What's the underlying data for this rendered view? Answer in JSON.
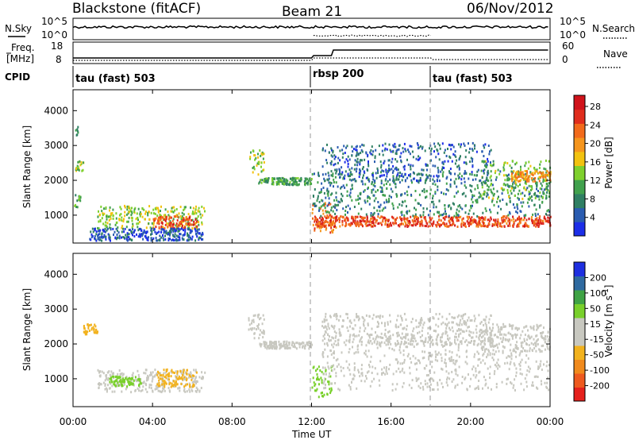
{
  "header": {
    "station": "Blackstone (fitACF)",
    "beam": "Beam 21",
    "date": "06/Nov/2012"
  },
  "params_panel": {
    "nsky_label": "N.Sky",
    "nsearch_label": "N.Search",
    "freq_label_line1": "Freq.",
    "freq_label_line2": "[MHz]",
    "nave_label": "Nave",
    "cpid_label": "CPID",
    "noise_left_ticks": [
      "10^5",
      "10^0"
    ],
    "noise_right_ticks": [
      "10^5",
      "10^0"
    ],
    "freq_ticks": [
      "18",
      "8"
    ],
    "nave_ticks": [
      "60",
      "0"
    ],
    "cpid_segments": [
      {
        "label": "tau (fast) 503",
        "start_hour": 0,
        "end_hour": 12
      },
      {
        "label": "rbsp 200",
        "start_hour": 12,
        "end_hour": 18
      },
      {
        "label": "tau (fast) 503",
        "start_hour": 18,
        "end_hour": 24
      }
    ]
  },
  "chart_data": [
    {
      "type": "heatmap",
      "name": "power",
      "ylabel": "Slant Range [km]",
      "xlim": [
        0,
        24
      ],
      "ylim": [
        200,
        4600
      ],
      "yticks": [
        "1000",
        "2000",
        "3000",
        "4000"
      ],
      "colorbar": {
        "label": "Power [dB]",
        "ticks": [
          "4",
          "8",
          "12",
          "16",
          "20",
          "24",
          "28"
        ],
        "range": [
          0,
          30
        ],
        "colors": [
          "#1c2ee8",
          "#2a5cb0",
          "#2f7f63",
          "#41a14d",
          "#7fd02d",
          "#f2c20f",
          "#f5951d",
          "#f26a1b",
          "#e02d1d",
          "#d0131b"
        ]
      },
      "regions": [
        {
          "t0": 0.05,
          "t1": 0.35,
          "r0": 1250,
          "r1": 1700,
          "value": 10
        },
        {
          "t0": 0.1,
          "t1": 0.5,
          "r0": 2300,
          "r1": 2600,
          "value": 14
        },
        {
          "t0": 0.1,
          "t1": 0.25,
          "r0": 3300,
          "r1": 3600,
          "value": 8
        },
        {
          "t0": 1.2,
          "t1": 6.6,
          "r0": 650,
          "r1": 1300,
          "value": 14
        },
        {
          "t0": 4.0,
          "t1": 6.2,
          "r0": 650,
          "r1": 1000,
          "value": 24
        },
        {
          "t0": 0.8,
          "t1": 6.5,
          "r0": 300,
          "r1": 650,
          "value": 4
        },
        {
          "t0": 8.8,
          "t1": 9.6,
          "r0": 2200,
          "r1": 2900,
          "value": 14
        },
        {
          "t0": 9.3,
          "t1": 12.0,
          "r0": 1900,
          "r1": 2100,
          "value": 10
        },
        {
          "t0": 12.0,
          "t1": 13.2,
          "r0": 500,
          "r1": 1400,
          "value": 22
        },
        {
          "t0": 12.1,
          "t1": 24.0,
          "r0": 700,
          "r1": 1000,
          "value": 24
        },
        {
          "t0": 12.0,
          "t1": 24.0,
          "r0": 1000,
          "r1": 2300,
          "value": 8
        },
        {
          "t0": 12.5,
          "t1": 21.0,
          "r0": 2000,
          "r1": 3100,
          "value": 5
        },
        {
          "t0": 20.5,
          "t1": 24.0,
          "r0": 1500,
          "r1": 2600,
          "value": 12
        },
        {
          "t0": 22.0,
          "t1": 24.0,
          "r0": 2000,
          "r1": 2300,
          "value": 20
        }
      ]
    },
    {
      "type": "heatmap",
      "name": "velocity",
      "ylabel": "Slant Range [km]",
      "xlim": [
        0,
        24
      ],
      "ylim": [
        200,
        4600
      ],
      "yticks": [
        "1000",
        "2000",
        "3000",
        "4000"
      ],
      "colorbar": {
        "label": "Velocity [m s",
        "label_sup": "-1",
        "label_tail": "]",
        "ticks": [
          "-200",
          "-100",
          "-50",
          "-15",
          "15",
          "50",
          "100",
          "200"
        ],
        "colors": [
          "#e5211c",
          "#ee5a1f",
          "#f08a1d",
          "#f2b21e",
          "#c8c8c0",
          "#c8c8c0",
          "#79d02b",
          "#3fa345",
          "#2f6aa0",
          "#1e2fe0"
        ]
      },
      "regions": [
        {
          "t0": 0.5,
          "t1": 1.2,
          "r0": 2300,
          "r1": 2600,
          "value": -60
        },
        {
          "t0": 1.2,
          "t1": 6.6,
          "r0": 650,
          "r1": 1300,
          "value": 0
        },
        {
          "t0": 1.8,
          "t1": 3.4,
          "r0": 800,
          "r1": 1100,
          "value": 40
        },
        {
          "t0": 4.2,
          "t1": 6.2,
          "r0": 800,
          "r1": 1300,
          "value": -60
        },
        {
          "t0": 8.8,
          "t1": 9.6,
          "r0": 2200,
          "r1": 2900,
          "value": 0
        },
        {
          "t0": 9.3,
          "t1": 12.0,
          "r0": 1900,
          "r1": 2100,
          "value": 0
        },
        {
          "t0": 12.0,
          "t1": 13.0,
          "r0": 500,
          "r1": 1400,
          "value": 40
        },
        {
          "t0": 12.5,
          "t1": 24.0,
          "r0": 700,
          "r1": 2300,
          "value": 0
        },
        {
          "t0": 12.5,
          "t1": 21.0,
          "r0": 2000,
          "r1": 2900,
          "value": -30
        },
        {
          "t0": 20.5,
          "t1": 24.0,
          "r0": 1800,
          "r1": 2600,
          "value": 0
        }
      ]
    }
  ],
  "x_axis": {
    "ticks": [
      "00:00",
      "04:00",
      "08:00",
      "12:00",
      "16:00",
      "20:00",
      "00:00"
    ],
    "label": "Time UT"
  }
}
